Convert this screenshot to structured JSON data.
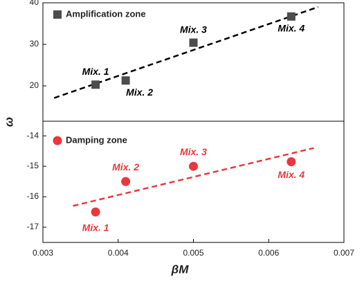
{
  "chart_data": {
    "type": "scatter",
    "x_label": "βM",
    "y_label": "ω",
    "xlim": [
      0.003,
      0.007
    ],
    "xticks": [
      0.003,
      0.004,
      0.005,
      0.006,
      0.007
    ],
    "panels": [
      {
        "ylim": [
          11.5,
          40
        ],
        "yticks": [
          20,
          30,
          40
        ],
        "marker": "square",
        "series": [
          {
            "name": "Amplification zone",
            "color": "#4d4d4d",
            "x": [
              0.0037,
              0.0041,
              0.005,
              0.0063
            ],
            "values": [
              20.3,
              21.3,
              30.4,
              36.7
            ],
            "point_labels": [
              "Mix. 1",
              "Mix. 2",
              "Mix. 3",
              "Mix. 4"
            ]
          }
        ],
        "fit": {
          "color": "#000000",
          "x": [
            0.00315,
            0.00666
          ],
          "values": [
            17.1,
            39
          ]
        }
      },
      {
        "ylim": [
          -17.5,
          -13.52
        ],
        "yticks": [
          -17,
          -16,
          -15,
          -14
        ],
        "marker": "circle",
        "series": [
          {
            "name": "Damping zone",
            "color": "#e8383d",
            "x": [
              0.0037,
              0.0041,
              0.005,
              0.0063
            ],
            "values": [
              -16.5,
              -15.5,
              -15.0,
              -14.85
            ],
            "point_labels": [
              "Mix. 1",
              "Mix. 2",
              "Mix. 3",
              "Mix. 4"
            ]
          }
        ],
        "fit": {
          "color": "#e8383d",
          "x": [
            0.0034,
            0.0066
          ],
          "values": [
            -16.3,
            -14.4
          ]
        }
      }
    ]
  }
}
